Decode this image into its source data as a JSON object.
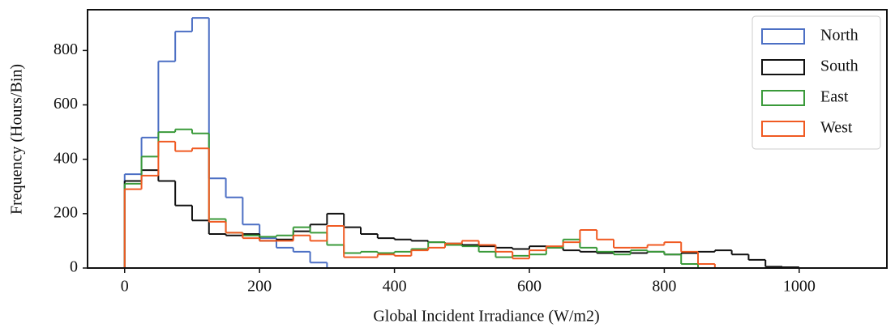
{
  "chart_data": {
    "type": "histogram",
    "xlabel": "Global Incident Irradiance (W/m2)",
    "ylabel": "Frequency (Hours/Bin)",
    "bins": [
      0,
      25,
      50,
      75,
      100,
      125,
      150,
      175,
      200,
      225,
      250,
      275,
      300,
      325,
      350,
      375,
      400,
      425,
      450,
      475,
      500,
      525,
      550,
      575,
      600,
      625,
      650,
      675,
      700,
      725,
      750,
      775,
      800,
      825,
      850,
      875,
      900,
      925,
      950,
      975,
      1000
    ],
    "series": [
      {
        "name": "North",
        "color": "#4c6fc4",
        "values": [
          345,
          480,
          760,
          870,
          920,
          330,
          260,
          160,
          110,
          75,
          60,
          20,
          0,
          0,
          0,
          0,
          0,
          0,
          0,
          0,
          0,
          0,
          0,
          0,
          0,
          0,
          0,
          0,
          0,
          0,
          0,
          0,
          0,
          0,
          0,
          0,
          0,
          0,
          0,
          0
        ]
      },
      {
        "name": "South",
        "color": "#111111",
        "values": [
          320,
          360,
          320,
          230,
          175,
          125,
          120,
          125,
          100,
          105,
          135,
          160,
          200,
          150,
          125,
          110,
          105,
          100,
          95,
          90,
          85,
          80,
          75,
          70,
          80,
          75,
          65,
          60,
          55,
          60,
          55,
          60,
          50,
          55,
          60,
          65,
          50,
          30,
          5,
          3
        ]
      },
      {
        "name": "East",
        "color": "#3a9a3a",
        "values": [
          310,
          410,
          500,
          510,
          495,
          180,
          130,
          120,
          115,
          120,
          150,
          130,
          85,
          55,
          60,
          55,
          60,
          70,
          95,
          85,
          80,
          60,
          40,
          45,
          50,
          75,
          105,
          75,
          60,
          50,
          65,
          60,
          50,
          15,
          0,
          0,
          0,
          0,
          0,
          0
        ]
      },
      {
        "name": "West",
        "color": "#f05a22",
        "values": [
          290,
          340,
          465,
          430,
          440,
          170,
          130,
          110,
          100,
          100,
          120,
          100,
          155,
          40,
          40,
          50,
          45,
          65,
          75,
          90,
          100,
          85,
          60,
          35,
          65,
          80,
          95,
          140,
          105,
          75,
          75,
          85,
          95,
          60,
          15,
          0,
          0,
          0,
          0,
          0
        ]
      }
    ],
    "xlim": [
      -55,
      1130
    ],
    "ylim": [
      0,
      950
    ],
    "xticks": [
      0,
      200,
      400,
      600,
      800,
      1000
    ],
    "yticks": [
      0,
      200,
      400,
      600,
      800
    ],
    "legend": "upper right"
  }
}
